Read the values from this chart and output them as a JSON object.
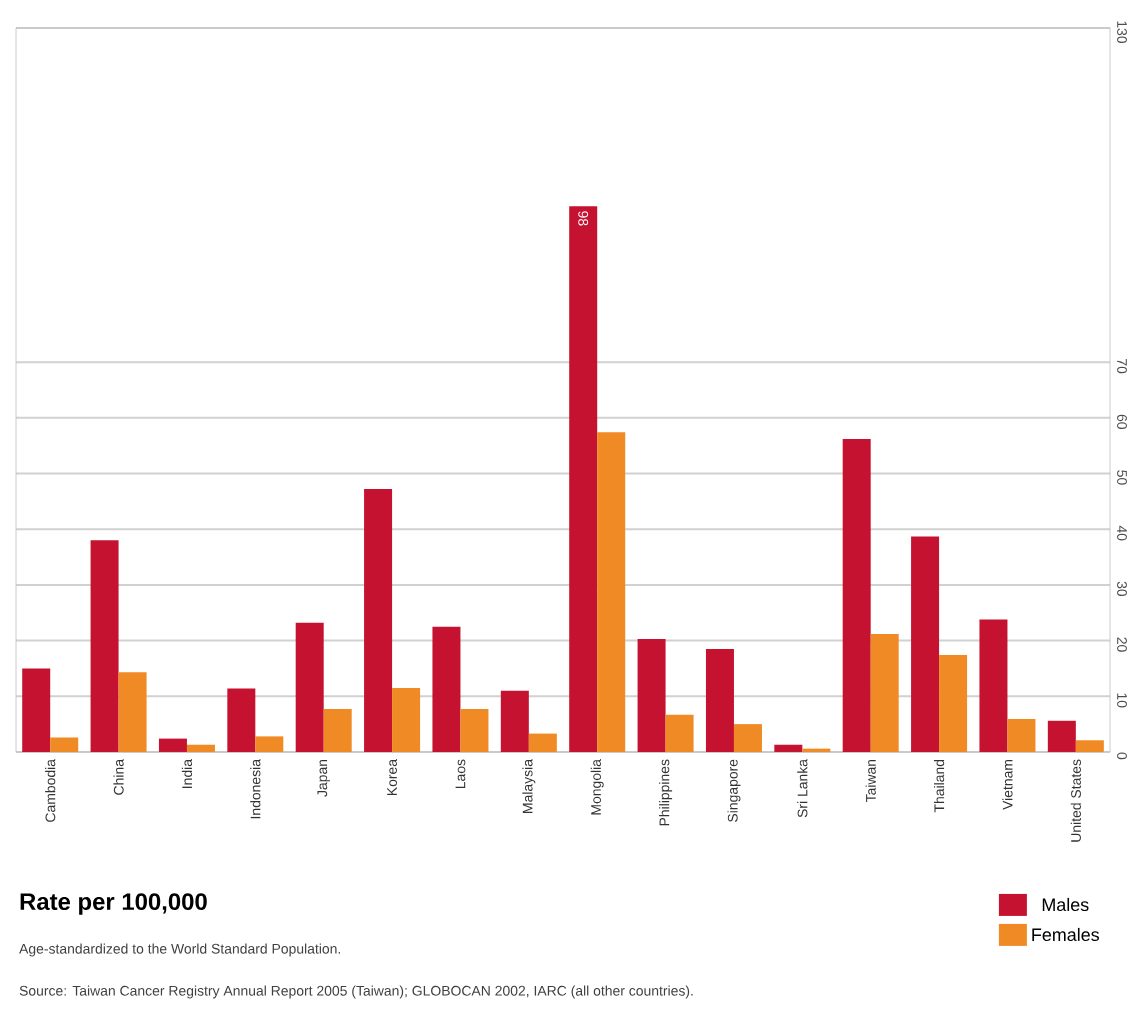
{
  "chart_data": {
    "type": "bar",
    "title": "Rate per 100,000",
    "annotations": [
      "Age-standardized to the World Standard Population.",
      "Source: Taiwan Cancer Registry Annual Report 2005 (Taiwan); GLOBOCAN 2002, IARC (all other countries)."
    ],
    "categories": [
      "Cambodia",
      "China",
      "India",
      "Indonesia",
      "Japan",
      "Korea",
      "Laos",
      "Malaysia",
      "Mongolia",
      "Philippines",
      "Singapore",
      "Sri Lanka",
      "Taiwan",
      "Thailand",
      "Vietnam",
      "United States"
    ],
    "series": [
      {
        "name": "Males",
        "color": "#c41230",
        "values": [
          15.0,
          38.0,
          2.4,
          11.4,
          23.2,
          47.2,
          22.5,
          11.0,
          98,
          20.3,
          18.5,
          1.3,
          56.2,
          38.7,
          23.8,
          5.6
        ],
        "value_labels": [
          null,
          null,
          null,
          null,
          null,
          null,
          null,
          null,
          "98",
          null,
          null,
          null,
          null,
          null,
          null,
          null
        ]
      },
      {
        "name": "Females",
        "color": "#f08a24",
        "values": [
          2.6,
          14.3,
          1.3,
          2.8,
          7.7,
          11.5,
          7.7,
          3.3,
          57.4,
          6.7,
          5.0,
          0.6,
          21.2,
          17.4,
          5.9,
          2.1
        ]
      }
    ],
    "ylim": [
      0,
      130
    ],
    "yticks": [
      0,
      10,
      20,
      30,
      40,
      50,
      60,
      70,
      130
    ],
    "grid": "y",
    "legend": "bottom right"
  }
}
